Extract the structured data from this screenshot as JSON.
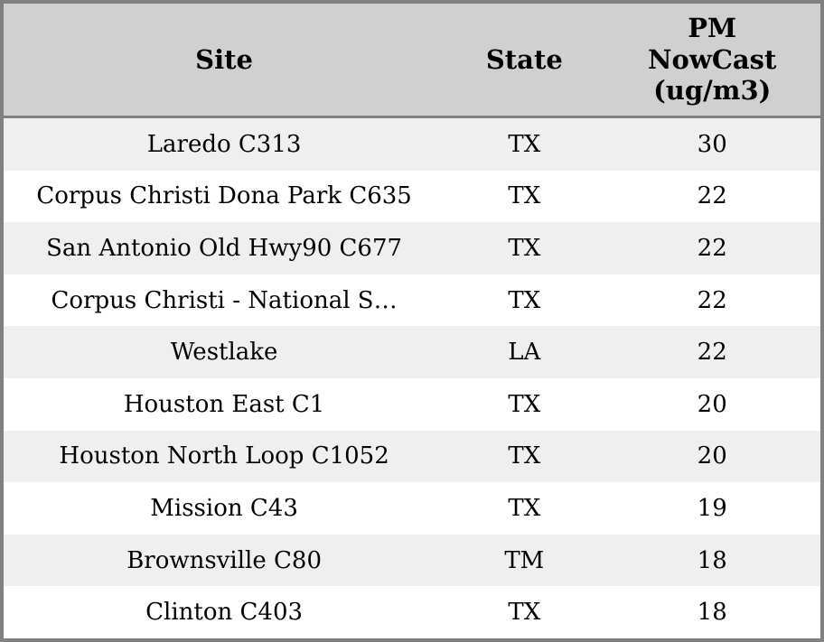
{
  "table": {
    "columns": [
      {
        "id": "site",
        "label": "Site"
      },
      {
        "id": "state",
        "label": "State"
      },
      {
        "id": "pm_nowcast",
        "label": "PM\nNowCast\n(ug/m3)"
      }
    ],
    "rows": [
      {
        "site": "Laredo C313",
        "state": "TX",
        "pm_nowcast": "30"
      },
      {
        "site": "Corpus Christi Dona Park C635",
        "state": "TX",
        "pm_nowcast": "22"
      },
      {
        "site": "San Antonio Old Hwy90 C677",
        "state": "TX",
        "pm_nowcast": "22"
      },
      {
        "site": "Corpus Christi - National S…",
        "state": "TX",
        "pm_nowcast": "22"
      },
      {
        "site": "Westlake",
        "state": "LA",
        "pm_nowcast": "22"
      },
      {
        "site": "Houston East C1",
        "state": "TX",
        "pm_nowcast": "20"
      },
      {
        "site": "Houston North Loop C1052",
        "state": "TX",
        "pm_nowcast": "20"
      },
      {
        "site": "Mission C43",
        "state": "TX",
        "pm_nowcast": "19"
      },
      {
        "site": "Brownsville C80",
        "state": "TM",
        "pm_nowcast": "18"
      },
      {
        "site": "Clinton C403",
        "state": "TX",
        "pm_nowcast": "18"
      }
    ]
  },
  "colors": {
    "header_background": "#d0d0d0",
    "row_stripe": "#efefef",
    "row_plain": "#ffffff",
    "border": "#808080",
    "text": "#000000"
  },
  "chart_data": {
    "type": "table",
    "title": "",
    "categories": [
      "Laredo C313",
      "Corpus Christi Dona Park C635",
      "San Antonio Old Hwy90 C677",
      "Corpus Christi - National S…",
      "Westlake",
      "Houston East C1",
      "Houston North Loop C1052",
      "Mission C43",
      "Brownsville C80",
      "Clinton C403"
    ],
    "series": [
      {
        "name": "State",
        "values": [
          "TX",
          "TX",
          "TX",
          "TX",
          "LA",
          "TX",
          "TX",
          "TX",
          "TM",
          "TX"
        ]
      },
      {
        "name": "PM NowCast (ug/m3)",
        "values": [
          30,
          22,
          22,
          22,
          22,
          20,
          20,
          19,
          18,
          18
        ]
      }
    ]
  }
}
